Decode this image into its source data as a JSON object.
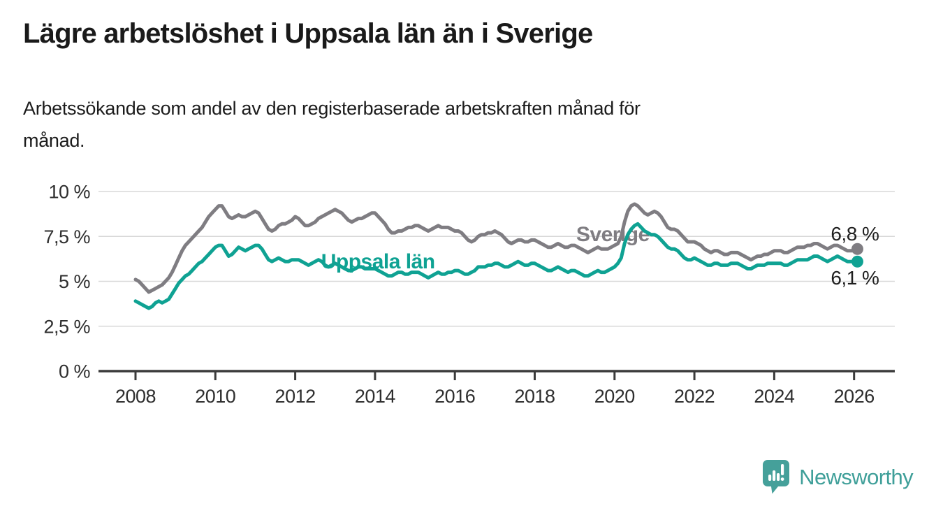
{
  "header": {
    "title": "Lägre arbetslöshet i Uppsala län än i Sverige",
    "subtitle_lines": [
      "Arbetssökande som andel av den registerbaserade arbetskraften månad för",
      "månad."
    ]
  },
  "chart_data": {
    "type": "line",
    "x_unit": "month",
    "x_start": "2008-01",
    "x_end": "2026-02",
    "xlim": [
      2007.05,
      2027.1
    ],
    "ylim": [
      0,
      10
    ],
    "grid": true,
    "legend_position": "inline-labels",
    "x_ticks": [
      2008,
      2010,
      2012,
      2014,
      2016,
      2018,
      2020,
      2022,
      2024,
      2026
    ],
    "y_ticks": [
      {
        "value": 0,
        "label": "0 %"
      },
      {
        "value": 2.5,
        "label": "2,5 %"
      },
      {
        "value": 5,
        "label": "5 %"
      },
      {
        "value": 7.5,
        "label": "7,5 %"
      },
      {
        "value": 10,
        "label": "10 %"
      }
    ],
    "colors": {
      "sverige": "#7f7d82",
      "uppsala": "#0fa293",
      "grid": "#d8d8d8",
      "axis": "#3b3b3b"
    },
    "series": [
      {
        "name": "Sverige",
        "color": "#7f7d82",
        "label_x": 2019.04,
        "label_y": 7.24,
        "end_label": "6,8 %",
        "end_label_side": "above",
        "values": [
          5.1,
          5.0,
          4.8,
          4.6,
          4.4,
          4.5,
          4.6,
          4.7,
          4.8,
          5.0,
          5.2,
          5.5,
          5.9,
          6.3,
          6.7,
          7.0,
          7.2,
          7.4,
          7.6,
          7.8,
          8.0,
          8.3,
          8.6,
          8.8,
          9.0,
          9.2,
          9.2,
          8.9,
          8.6,
          8.5,
          8.6,
          8.7,
          8.6,
          8.6,
          8.7,
          8.8,
          8.9,
          8.8,
          8.5,
          8.2,
          7.9,
          7.8,
          7.9,
          8.1,
          8.2,
          8.2,
          8.3,
          8.4,
          8.6,
          8.5,
          8.3,
          8.1,
          8.1,
          8.2,
          8.3,
          8.5,
          8.6,
          8.7,
          8.8,
          8.9,
          9.0,
          8.9,
          8.8,
          8.6,
          8.4,
          8.3,
          8.4,
          8.5,
          8.5,
          8.6,
          8.7,
          8.8,
          8.8,
          8.6,
          8.4,
          8.2,
          7.9,
          7.7,
          7.7,
          7.8,
          7.8,
          7.9,
          8.0,
          8.0,
          8.1,
          8.1,
          8.0,
          7.9,
          7.8,
          7.9,
          8.0,
          8.1,
          8.0,
          8.0,
          8.0,
          7.9,
          7.8,
          7.8,
          7.7,
          7.5,
          7.3,
          7.2,
          7.3,
          7.5,
          7.6,
          7.6,
          7.7,
          7.7,
          7.8,
          7.7,
          7.6,
          7.4,
          7.2,
          7.1,
          7.2,
          7.3,
          7.3,
          7.2,
          7.2,
          7.3,
          7.3,
          7.2,
          7.1,
          7.0,
          6.9,
          6.9,
          7.0,
          7.1,
          7.0,
          6.9,
          6.9,
          7.0,
          7.0,
          6.9,
          6.8,
          6.7,
          6.6,
          6.7,
          6.8,
          6.9,
          6.8,
          6.8,
          6.8,
          6.9,
          7.0,
          7.1,
          7.5,
          8.3,
          8.9,
          9.2,
          9.3,
          9.2,
          9.0,
          8.8,
          8.7,
          8.8,
          8.9,
          8.8,
          8.6,
          8.3,
          8.0,
          7.9,
          7.9,
          7.8,
          7.6,
          7.4,
          7.2,
          7.2,
          7.2,
          7.1,
          7.0,
          6.8,
          6.7,
          6.6,
          6.7,
          6.7,
          6.6,
          6.5,
          6.5,
          6.6,
          6.6,
          6.6,
          6.5,
          6.4,
          6.3,
          6.2,
          6.3,
          6.4,
          6.4,
          6.5,
          6.5,
          6.6,
          6.7,
          6.7,
          6.7,
          6.6,
          6.6,
          6.7,
          6.8,
          6.9,
          6.9,
          6.9,
          7.0,
          7.0,
          7.1,
          7.1,
          7.0,
          6.9,
          6.8,
          6.9,
          7.0,
          7.0,
          6.9,
          6.8,
          6.7,
          6.7,
          6.7,
          6.8
        ]
      },
      {
        "name": "Uppsala län",
        "color": "#0fa293",
        "label_x": 2012.65,
        "label_y": 5.72,
        "end_label": "6,1 %",
        "end_label_side": "below",
        "values": [
          3.9,
          3.8,
          3.7,
          3.6,
          3.5,
          3.6,
          3.8,
          3.9,
          3.8,
          3.9,
          4.0,
          4.3,
          4.6,
          4.9,
          5.1,
          5.3,
          5.4,
          5.6,
          5.8,
          6.0,
          6.1,
          6.3,
          6.5,
          6.7,
          6.9,
          7.0,
          7.0,
          6.7,
          6.4,
          6.5,
          6.7,
          6.9,
          6.8,
          6.7,
          6.8,
          6.9,
          7.0,
          7.0,
          6.8,
          6.5,
          6.2,
          6.1,
          6.2,
          6.3,
          6.2,
          6.1,
          6.1,
          6.2,
          6.2,
          6.2,
          6.1,
          6.0,
          5.9,
          6.0,
          6.1,
          6.2,
          6.1,
          5.9,
          5.8,
          5.9,
          6.0,
          5.9,
          5.8,
          5.7,
          5.6,
          5.6,
          5.7,
          5.8,
          5.8,
          5.7,
          5.7,
          5.7,
          5.7,
          5.6,
          5.5,
          5.4,
          5.3,
          5.3,
          5.4,
          5.5,
          5.5,
          5.4,
          5.4,
          5.5,
          5.5,
          5.5,
          5.4,
          5.3,
          5.2,
          5.3,
          5.4,
          5.5,
          5.4,
          5.4,
          5.5,
          5.5,
          5.6,
          5.6,
          5.5,
          5.4,
          5.4,
          5.5,
          5.6,
          5.8,
          5.8,
          5.8,
          5.9,
          5.9,
          6.0,
          6.0,
          5.9,
          5.8,
          5.8,
          5.9,
          6.0,
          6.1,
          6.0,
          5.9,
          5.9,
          6.0,
          6.0,
          5.9,
          5.8,
          5.7,
          5.6,
          5.6,
          5.7,
          5.8,
          5.7,
          5.6,
          5.5,
          5.6,
          5.6,
          5.5,
          5.4,
          5.3,
          5.3,
          5.4,
          5.5,
          5.6,
          5.5,
          5.5,
          5.6,
          5.7,
          5.8,
          6.0,
          6.3,
          7.1,
          7.6,
          7.9,
          8.1,
          8.2,
          8.0,
          7.8,
          7.7,
          7.6,
          7.6,
          7.5,
          7.3,
          7.1,
          6.9,
          6.8,
          6.8,
          6.7,
          6.5,
          6.3,
          6.2,
          6.2,
          6.3,
          6.2,
          6.1,
          6.0,
          5.9,
          5.9,
          6.0,
          6.0,
          5.9,
          5.9,
          5.9,
          6.0,
          6.0,
          6.0,
          5.9,
          5.8,
          5.7,
          5.7,
          5.8,
          5.9,
          5.9,
          5.9,
          6.0,
          6.0,
          6.0,
          6.0,
          6.0,
          5.9,
          5.9,
          6.0,
          6.1,
          6.2,
          6.2,
          6.2,
          6.2,
          6.3,
          6.4,
          6.4,
          6.3,
          6.2,
          6.1,
          6.2,
          6.3,
          6.4,
          6.3,
          6.2,
          6.1,
          6.1,
          6.1,
          6.1
        ]
      }
    ]
  },
  "branding": {
    "name": "Newsworthy",
    "accent_color": "#3f9f99"
  }
}
